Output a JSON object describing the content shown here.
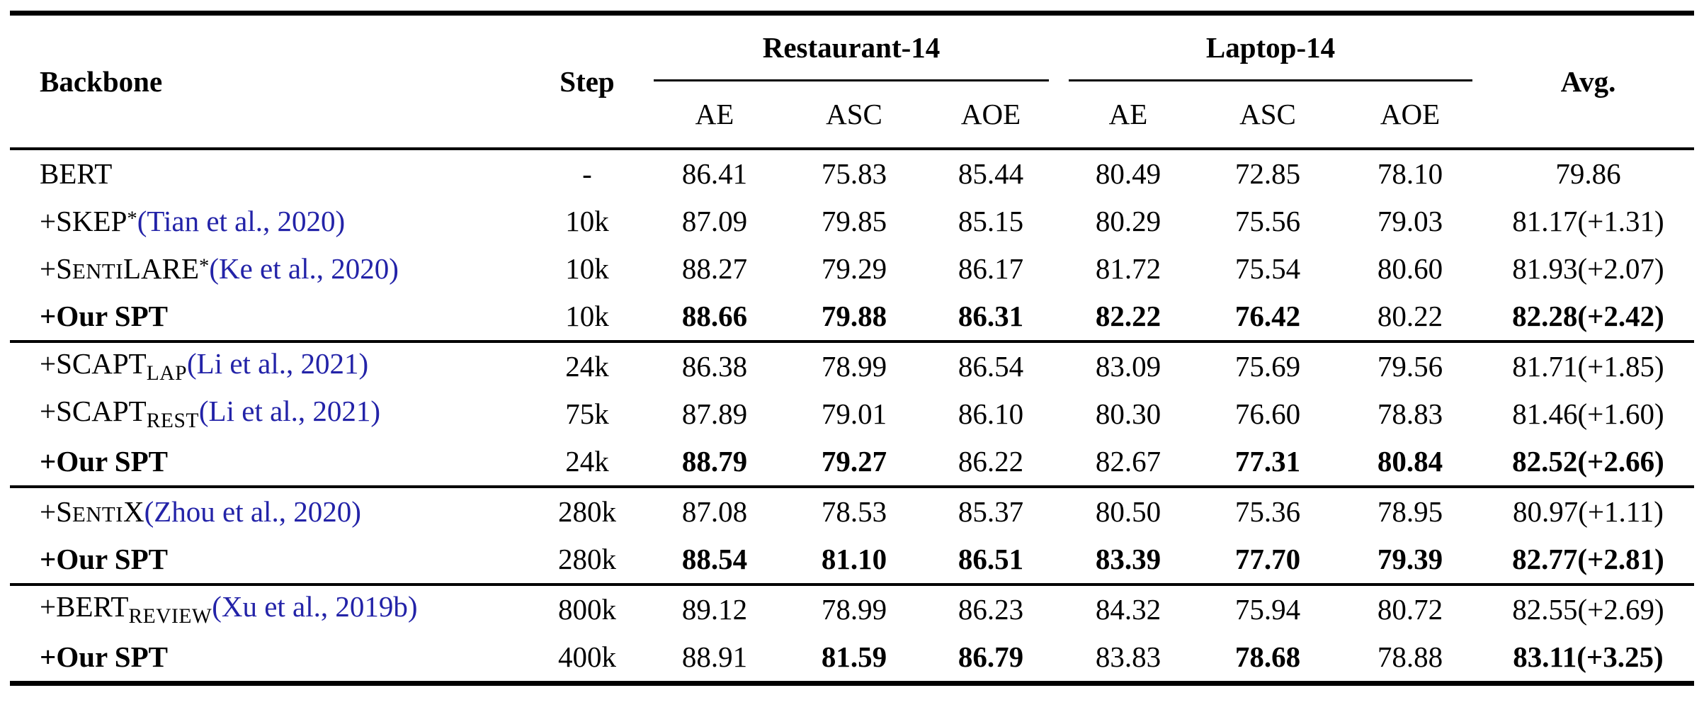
{
  "table": {
    "colors": {
      "citation_blue": "#2323a8",
      "text": "#000000",
      "background": "#ffffff"
    },
    "header": {
      "backbone": "Backbone",
      "step": "Step",
      "avg": "Avg.",
      "groups": [
        {
          "label": "Restaurant-14",
          "subcols": [
            "AE",
            "ASC",
            "AOE"
          ]
        },
        {
          "label": "Laptop-14",
          "subcols": [
            "AE",
            "ASC",
            "AOE"
          ]
        }
      ]
    },
    "rows": [
      {
        "label_segments": [
          {
            "t": "BERT"
          }
        ],
        "label_bold": false,
        "step": "-",
        "values": [
          "86.41",
          "75.83",
          "85.44",
          "80.49",
          "72.85",
          "78.10"
        ],
        "bold": [
          false,
          false,
          false,
          false,
          false,
          false
        ],
        "avg": "79.86",
        "avg_bold": false,
        "group_end": false
      },
      {
        "label_segments": [
          {
            "t": "+SKEP"
          },
          {
            "t": "*",
            "s": "sup"
          },
          {
            "t": "(Tian et al., 2020)",
            "s": "cite"
          }
        ],
        "label_bold": false,
        "step": "10k",
        "values": [
          "87.09",
          "79.85",
          "85.15",
          "80.29",
          "75.56",
          "79.03"
        ],
        "bold": [
          false,
          false,
          false,
          false,
          false,
          false
        ],
        "avg": "81.17(+1.31)",
        "avg_bold": false,
        "group_end": false
      },
      {
        "label_segments": [
          {
            "t": "+S"
          },
          {
            "t": "ENTI",
            "s": "sc"
          },
          {
            "t": "LARE"
          },
          {
            "t": "*",
            "s": "sup"
          },
          {
            "t": "(Ke et al., 2020)",
            "s": "cite"
          }
        ],
        "label_bold": false,
        "step": "10k",
        "values": [
          "88.27",
          "79.29",
          "86.17",
          "81.72",
          "75.54",
          "80.60"
        ],
        "bold": [
          false,
          false,
          false,
          false,
          false,
          false
        ],
        "avg": "81.93(+2.07)",
        "avg_bold": false,
        "group_end": false
      },
      {
        "label_segments": [
          {
            "t": "+Our SPT"
          }
        ],
        "label_bold": true,
        "step": "10k",
        "values": [
          "88.66",
          "79.88",
          "86.31",
          "82.22",
          "76.42",
          "80.22"
        ],
        "bold": [
          true,
          true,
          true,
          true,
          true,
          false
        ],
        "avg": "82.28(+2.42)",
        "avg_bold": true,
        "group_end": true
      },
      {
        "label_segments": [
          {
            "t": "+SCAPT"
          },
          {
            "t": "LAP",
            "s": "sub"
          },
          {
            "t": "(Li et al., 2021)",
            "s": "cite"
          }
        ],
        "label_bold": false,
        "step": "24k",
        "values": [
          "86.38",
          "78.99",
          "86.54",
          "83.09",
          "75.69",
          "79.56"
        ],
        "bold": [
          false,
          false,
          false,
          false,
          false,
          false
        ],
        "avg": "81.71(+1.85)",
        "avg_bold": false,
        "group_end": false
      },
      {
        "label_segments": [
          {
            "t": "+SCAPT"
          },
          {
            "t": "REST",
            "s": "sub"
          },
          {
            "t": "(Li et al., 2021)",
            "s": "cite"
          }
        ],
        "label_bold": false,
        "step": "75k",
        "values": [
          "87.89",
          "79.01",
          "86.10",
          "80.30",
          "76.60",
          "78.83"
        ],
        "bold": [
          false,
          false,
          false,
          false,
          false,
          false
        ],
        "avg": "81.46(+1.60)",
        "avg_bold": false,
        "group_end": false
      },
      {
        "label_segments": [
          {
            "t": "+Our SPT"
          }
        ],
        "label_bold": true,
        "step": "24k",
        "values": [
          "88.79",
          "79.27",
          "86.22",
          "82.67",
          "77.31",
          "80.84"
        ],
        "bold": [
          true,
          true,
          false,
          false,
          true,
          true
        ],
        "avg": "82.52(+2.66)",
        "avg_bold": true,
        "group_end": true
      },
      {
        "label_segments": [
          {
            "t": "+S"
          },
          {
            "t": "ENTI",
            "s": "sc"
          },
          {
            "t": "X"
          },
          {
            "t": "(Zhou et al., 2020)",
            "s": "cite"
          }
        ],
        "label_bold": false,
        "step": "280k",
        "values": [
          "87.08",
          "78.53",
          "85.37",
          "80.50",
          "75.36",
          "78.95"
        ],
        "bold": [
          false,
          false,
          false,
          false,
          false,
          false
        ],
        "avg": "80.97(+1.11)",
        "avg_bold": false,
        "group_end": false
      },
      {
        "label_segments": [
          {
            "t": "+Our SPT"
          }
        ],
        "label_bold": true,
        "step": "280k",
        "values": [
          "88.54",
          "81.10",
          "86.51",
          "83.39",
          "77.70",
          "79.39"
        ],
        "bold": [
          true,
          true,
          true,
          true,
          true,
          true
        ],
        "avg": "82.77(+2.81)",
        "avg_bold": true,
        "group_end": true
      },
      {
        "label_segments": [
          {
            "t": "+BERT"
          },
          {
            "t": "REVIEW",
            "s": "sub"
          },
          {
            "t": "(Xu et al., 2019b)",
            "s": "cite"
          }
        ],
        "label_bold": false,
        "step": "800k",
        "values": [
          "89.12",
          "78.99",
          "86.23",
          "84.32",
          "75.94",
          "80.72"
        ],
        "bold": [
          false,
          false,
          false,
          false,
          false,
          false
        ],
        "avg": "82.55(+2.69)",
        "avg_bold": false,
        "group_end": false
      },
      {
        "label_segments": [
          {
            "t": "+Our SPT"
          }
        ],
        "label_bold": true,
        "step": "400k",
        "values": [
          "88.91",
          "81.59",
          "86.79",
          "83.83",
          "78.68",
          "78.88"
        ],
        "bold": [
          false,
          true,
          true,
          false,
          true,
          false
        ],
        "avg": "83.11(+3.25)",
        "avg_bold": true,
        "group_end": false
      }
    ]
  }
}
